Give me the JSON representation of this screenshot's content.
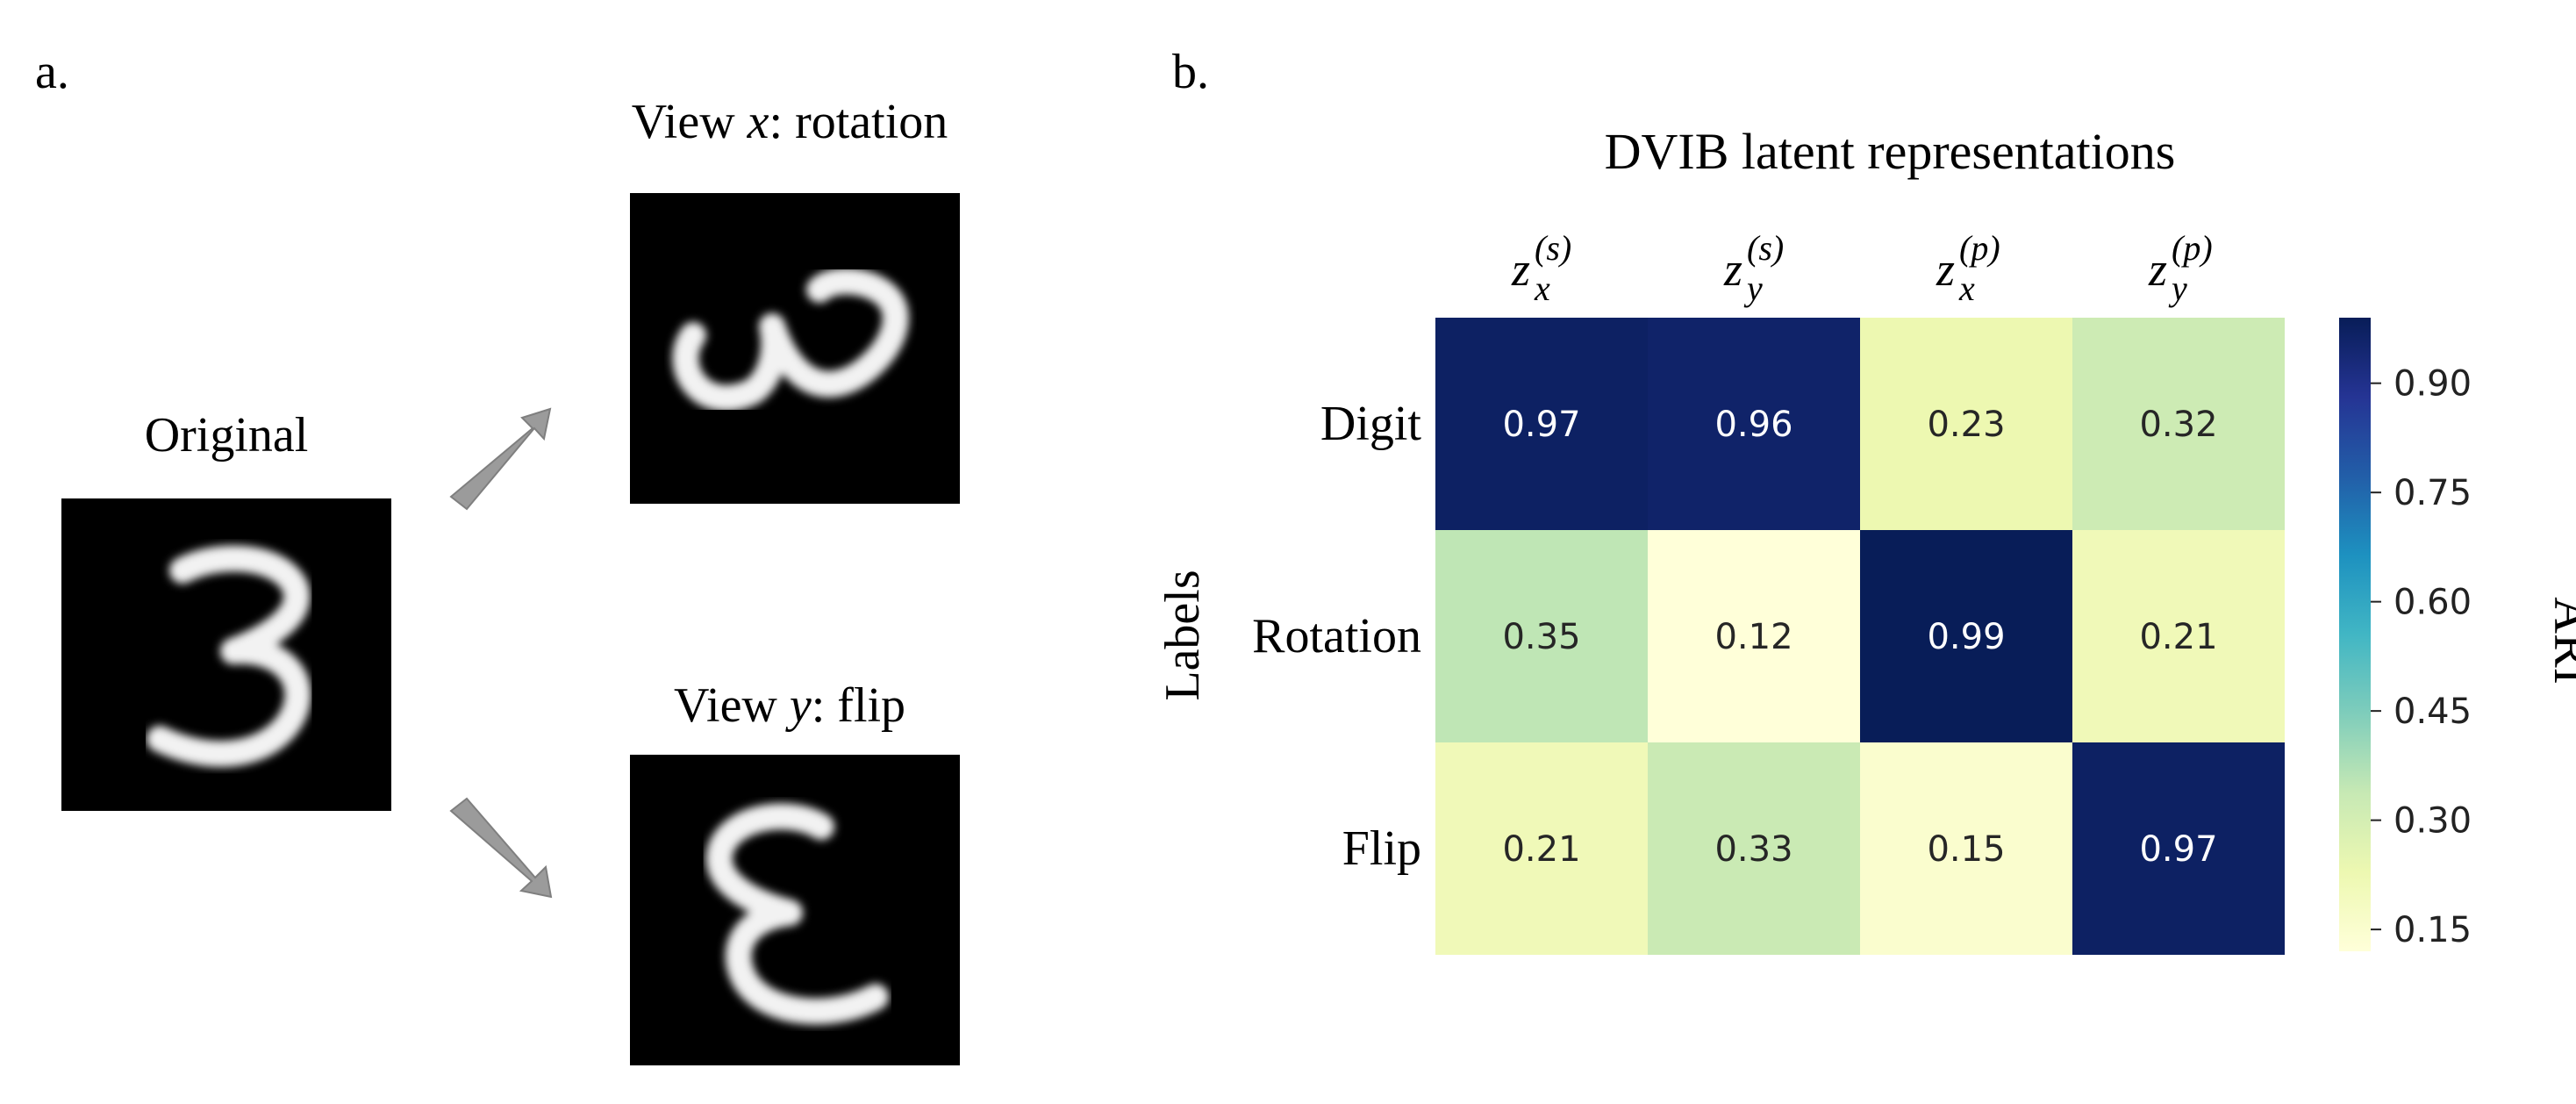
{
  "panel_a": {
    "label": "a.",
    "original_title": "Original",
    "view_x_title": {
      "prefix": "View ",
      "var": "x",
      "suffix": ": rotation"
    },
    "view_y_title": {
      "prefix": "View ",
      "var": "y",
      "suffix": ": flip"
    },
    "arrow_color": "#9b9b9b"
  },
  "panel_b": {
    "label": "b."
  },
  "chart_data": {
    "type": "heatmap",
    "title": "DVIB latent representations",
    "ylabel": "Labels",
    "columns": [
      {
        "base": "z",
        "sub": "x",
        "sup": "(s)"
      },
      {
        "base": "z",
        "sub": "y",
        "sup": "(s)"
      },
      {
        "base": "z",
        "sub": "x",
        "sup": "(p)"
      },
      {
        "base": "z",
        "sub": "y",
        "sup": "(p)"
      }
    ],
    "rows": [
      "Digit",
      "Rotation",
      "Flip"
    ],
    "values": [
      [
        0.97,
        0.96,
        0.23,
        0.32
      ],
      [
        0.35,
        0.12,
        0.99,
        0.21
      ],
      [
        0.21,
        0.33,
        0.15,
        0.97
      ]
    ],
    "value_labels": [
      [
        "0.97",
        "0.96",
        "0.23",
        "0.32"
      ],
      [
        "0.35",
        "0.12",
        "0.99",
        "0.21"
      ],
      [
        "0.21",
        "0.33",
        "0.15",
        "0.97"
      ]
    ],
    "colorbar": {
      "label": "ARI",
      "range": [
        0.12,
        0.99
      ],
      "ticks": [
        0.15,
        0.3,
        0.45,
        0.6,
        0.75,
        0.9
      ],
      "tick_labels": [
        "0.15",
        "0.30",
        "0.45",
        "0.60",
        "0.75",
        "0.90"
      ],
      "colormap": "YlGnBu",
      "stops": [
        "#ffffd9",
        "#edf8b1",
        "#c7e9b4",
        "#7fcdbb",
        "#41b6c4",
        "#1d91c0",
        "#225ea8",
        "#253494",
        "#081d58"
      ]
    }
  }
}
